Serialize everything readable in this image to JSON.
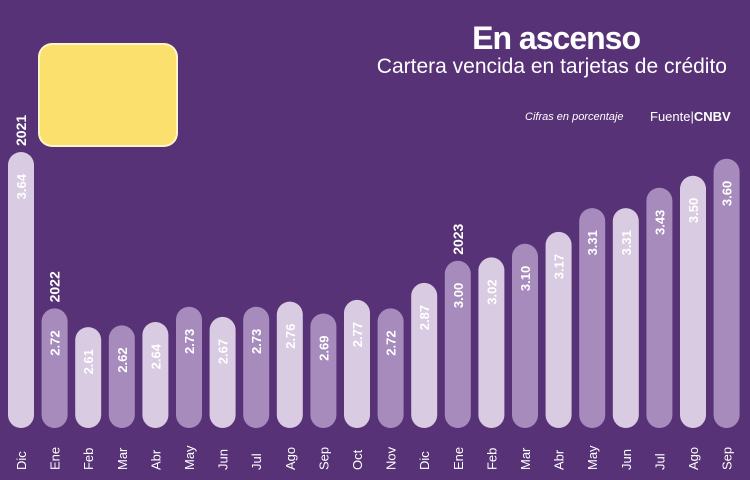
{
  "header": {
    "title": "En ascenso",
    "subtitle": "Cartera vencida en tarjetas de crédito",
    "units": "Cifras en porcentaje",
    "source_prefix": "Fuente|",
    "source_name": "CNBV"
  },
  "colors": {
    "background": "#583276",
    "bar_light": "#d9cbe1",
    "bar_dark": "#a78bbd",
    "card": "#fbe06e"
  },
  "chart_data": {
    "type": "bar",
    "title": "En ascenso",
    "subtitle": "Cartera vencida en tarjetas de crédito",
    "ylabel": "Cifras en porcentaje",
    "ylim": [
      0,
      3.8
    ],
    "categories": [
      "Dic",
      "Ene",
      "Feb",
      "Mar",
      "Abr",
      "May",
      "Jun",
      "Jul",
      "Ago",
      "Sep",
      "Oct",
      "Nov",
      "Dic",
      "Ene",
      "Feb",
      "Mar",
      "Abr",
      "May",
      "Jun",
      "Jul",
      "Ago",
      "Sep"
    ],
    "values": [
      3.64,
      2.72,
      2.61,
      2.62,
      2.64,
      2.73,
      2.67,
      2.73,
      2.76,
      2.69,
      2.77,
      2.72,
      2.87,
      3.0,
      3.02,
      3.1,
      3.17,
      3.31,
      3.31,
      3.43,
      3.5,
      3.6
    ],
    "value_labels": [
      "3.64",
      "2.72",
      "2.61",
      "2.62",
      "2.64",
      "2.73",
      "2.67",
      "2.73",
      "2.76",
      "2.69",
      "2.77",
      "2.72",
      "2.87",
      "3.00",
      "3.02",
      "3.10",
      "3.17",
      "3.31",
      "3.31",
      "3.43",
      "3.50",
      "3.60"
    ],
    "year_markers": [
      {
        "index": 0,
        "label": "2021"
      },
      {
        "index": 1,
        "label": "2022"
      },
      {
        "index": 13,
        "label": "2023"
      }
    ]
  }
}
